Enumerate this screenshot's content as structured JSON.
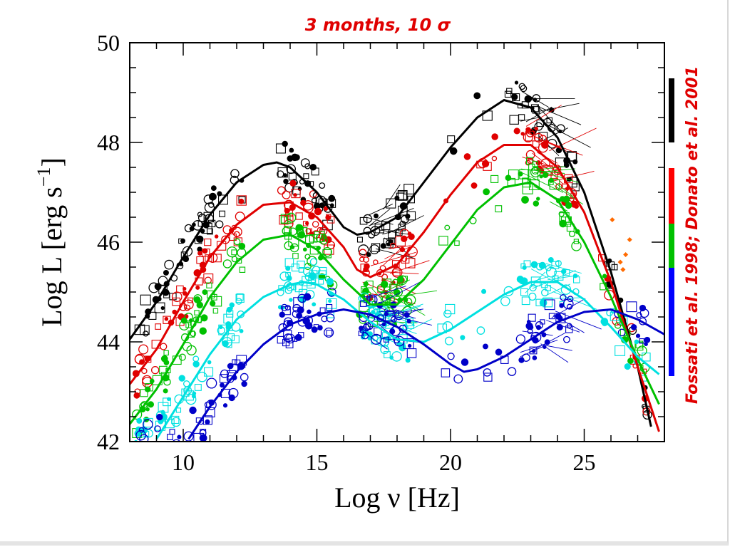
{
  "chart_data": {
    "type": "scatter",
    "title": "3 months,    10 σ",
    "xlabel": "Log  ν  [Hz]",
    "ylabel_main": "Log  L  [erg  s",
    "ylabel_sup": "−1",
    "ylabel_close": "]",
    "xlim": [
      8,
      28
    ],
    "ylim": [
      42,
      50
    ],
    "xticks": [
      10,
      15,
      20,
      25
    ],
    "yticks": [
      42,
      44,
      46,
      48,
      50
    ],
    "grid": false,
    "legend_vertical": {
      "part1": "Fossati et al. 1998;",
      "part2": "Donato et al. 2001",
      "bar_colors": [
        "#000000",
        "#ff0000",
        "#00c000",
        "#0000ff"
      ]
    },
    "series": [
      {
        "color": "#000000",
        "model_points": [
          [
            8,
            44.05
          ],
          [
            9,
            44.8
          ],
          [
            10,
            45.7
          ],
          [
            11,
            46.55
          ],
          [
            12,
            47.2
          ],
          [
            13,
            47.55
          ],
          [
            13.5,
            47.6
          ],
          [
            14,
            47.5
          ],
          [
            15,
            47.0
          ],
          [
            16,
            46.3
          ],
          [
            16.5,
            46.15
          ],
          [
            17,
            46.2
          ],
          [
            18,
            46.5
          ],
          [
            19,
            47.2
          ],
          [
            20,
            47.9
          ],
          [
            21,
            48.5
          ],
          [
            22,
            48.85
          ],
          [
            23,
            48.7
          ],
          [
            24,
            48.1
          ],
          [
            25,
            47.0
          ],
          [
            26,
            45.4
          ],
          [
            27,
            43.5
          ],
          [
            27.5,
            42.3
          ]
        ]
      },
      {
        "color": "#e00000",
        "model_points": [
          [
            8,
            43.15
          ],
          [
            9,
            43.85
          ],
          [
            10,
            44.8
          ],
          [
            11,
            45.7
          ],
          [
            12,
            46.35
          ],
          [
            13,
            46.75
          ],
          [
            14,
            46.8
          ],
          [
            15,
            46.5
          ],
          [
            16,
            45.9
          ],
          [
            16.5,
            45.45
          ],
          [
            17,
            45.3
          ],
          [
            18,
            45.55
          ],
          [
            19,
            46.2
          ],
          [
            20,
            46.95
          ],
          [
            21,
            47.6
          ],
          [
            22,
            47.95
          ],
          [
            23,
            47.95
          ],
          [
            24,
            47.5
          ],
          [
            25,
            46.6
          ],
          [
            26,
            45.2
          ],
          [
            27,
            43.5
          ],
          [
            27.8,
            42.2
          ]
        ]
      },
      {
        "color": "#00c000",
        "model_points": [
          [
            8,
            42.35
          ],
          [
            9,
            43.05
          ],
          [
            10,
            43.95
          ],
          [
            11,
            44.9
          ],
          [
            12,
            45.6
          ],
          [
            13,
            46.05
          ],
          [
            14,
            46.15
          ],
          [
            15,
            45.85
          ],
          [
            16,
            45.25
          ],
          [
            17,
            44.75
          ],
          [
            18,
            44.75
          ],
          [
            19,
            45.25
          ],
          [
            20,
            45.95
          ],
          [
            21,
            46.65
          ],
          [
            22,
            47.1
          ],
          [
            23,
            47.2
          ],
          [
            24,
            46.85
          ],
          [
            25,
            46.0
          ],
          [
            26,
            44.9
          ],
          [
            27,
            43.65
          ],
          [
            27.8,
            42.75
          ]
        ]
      },
      {
        "color": "#00e0e0",
        "model_points": [
          [
            9,
            42.05
          ],
          [
            10,
            42.9
          ],
          [
            11,
            43.75
          ],
          [
            12,
            44.45
          ],
          [
            13,
            44.9
          ],
          [
            14,
            45.15
          ],
          [
            14.5,
            45.2
          ],
          [
            15,
            45.15
          ],
          [
            16,
            44.85
          ],
          [
            17,
            44.4
          ],
          [
            18,
            44.05
          ],
          [
            19,
            44.0
          ],
          [
            20,
            44.25
          ],
          [
            21,
            44.6
          ],
          [
            22,
            44.95
          ],
          [
            23,
            45.2
          ],
          [
            24,
            45.2
          ],
          [
            25,
            44.85
          ],
          [
            26,
            44.3
          ],
          [
            27,
            43.7
          ],
          [
            27.8,
            43.35
          ]
        ]
      },
      {
        "color": "#0000c8",
        "model_points": [
          [
            10.2,
            42.05
          ],
          [
            11,
            42.7
          ],
          [
            12,
            43.4
          ],
          [
            13,
            43.95
          ],
          [
            14,
            44.35
          ],
          [
            15,
            44.55
          ],
          [
            16,
            44.65
          ],
          [
            17,
            44.55
          ],
          [
            18,
            44.3
          ],
          [
            19,
            43.95
          ],
          [
            20,
            43.55
          ],
          [
            20.5,
            43.4
          ],
          [
            21,
            43.45
          ],
          [
            22,
            43.7
          ],
          [
            23,
            44.05
          ],
          [
            24,
            44.4
          ],
          [
            25,
            44.6
          ],
          [
            26,
            44.65
          ],
          [
            27,
            44.45
          ],
          [
            28,
            44.15
          ]
        ]
      }
    ],
    "annotation_points": [
      {
        "color": "#ff6a00",
        "points": [
          [
            26.05,
            46.45
          ],
          [
            26.35,
            45.6
          ],
          [
            26.55,
            45.75
          ],
          [
            26.45,
            45.45
          ],
          [
            26.7,
            46.05
          ]
        ]
      }
    ]
  }
}
